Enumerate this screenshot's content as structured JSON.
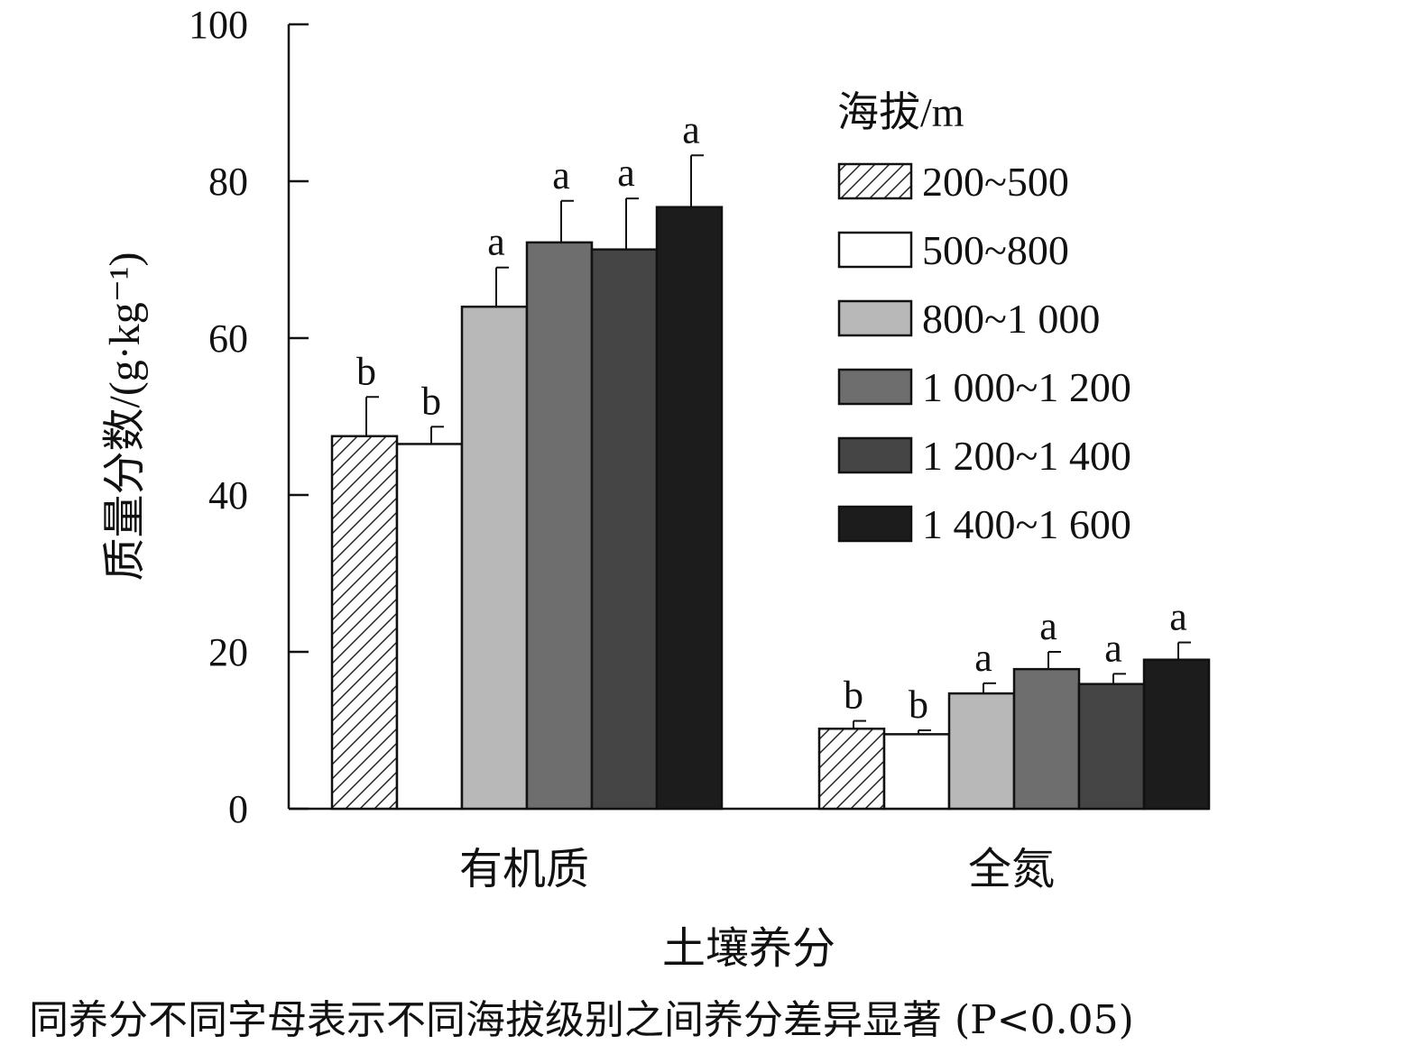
{
  "chart_data": {
    "type": "bar",
    "xlabel": "土壤养分",
    "ylabel": "质量分数/(g·kg⁻¹)",
    "ylim": [
      0,
      100
    ],
    "yticks": [
      "0",
      "20",
      "40",
      "60",
      "80",
      "100"
    ],
    "categories": [
      "有机质",
      "全氮"
    ],
    "legend_title": "海拔/m",
    "legend_position": "top-right",
    "series": [
      {
        "name": "200~500",
        "fill": "#ffffff",
        "pattern": "hatch",
        "values": [
          47.5,
          10.2
        ],
        "errors": [
          5.0,
          1.0
        ],
        "labels": [
          "b",
          "b"
        ]
      },
      {
        "name": "500~800",
        "fill": "#ffffff",
        "values": [
          46.5,
          9.5
        ],
        "errors": [
          2.2,
          0.5
        ],
        "labels": [
          "b",
          "b"
        ]
      },
      {
        "name": "800~1 000",
        "fill": "#b8b8b8",
        "values": [
          64.0,
          14.7
        ],
        "errors": [
          5.0,
          1.3
        ],
        "labels": [
          "a",
          "a"
        ]
      },
      {
        "name": "1 000~1 200",
        "fill": "#6e6e6e",
        "values": [
          72.2,
          17.8
        ],
        "errors": [
          5.3,
          2.2
        ],
        "labels": [
          "a",
          "a"
        ]
      },
      {
        "name": "1 200~1 400",
        "fill": "#454545",
        "values": [
          71.3,
          15.9
        ],
        "errors": [
          6.5,
          1.3
        ],
        "labels": [
          "a",
          "a"
        ]
      },
      {
        "name": "1 400~1 600",
        "fill": "#1c1c1c",
        "values": [
          76.7,
          19.0
        ],
        "errors": [
          6.6,
          2.2
        ],
        "labels": [
          "a",
          "a"
        ]
      }
    ]
  },
  "note": "同养分不同字母表示不同海拔级别之间养分差异显著 (P<0.05)"
}
